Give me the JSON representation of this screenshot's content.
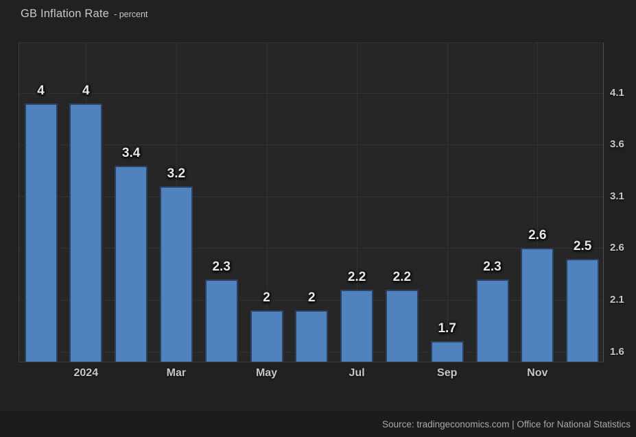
{
  "header": {
    "title": "GB Inflation Rate",
    "subtitle": "- percent"
  },
  "footer": {
    "source": "Source: tradingeconomics.com | Office for National Statistics"
  },
  "chart_data": {
    "type": "bar",
    "title": "GB Inflation Rate",
    "subtitle": "- percent",
    "ylabel": "percent",
    "values": [
      4,
      4,
      3.4,
      3.2,
      2.3,
      2,
      2,
      2.2,
      2.2,
      1.7,
      2.3,
      2.6,
      2.5
    ],
    "bar_labels": [
      "4",
      "4",
      "3.4",
      "3.2",
      "2.3",
      "2",
      "2",
      "2.2",
      "2.2",
      "1.7",
      "2.3",
      "2.6",
      "2.5"
    ],
    "x_ticks": [
      {
        "bar_index": 1,
        "label": "2024"
      },
      {
        "bar_index": 3,
        "label": "Mar"
      },
      {
        "bar_index": 5,
        "label": "May"
      },
      {
        "bar_index": 7,
        "label": "Jul"
      },
      {
        "bar_index": 9,
        "label": "Sep"
      },
      {
        "bar_index": 11,
        "label": "Nov"
      }
    ],
    "y_ticks": [
      4.1,
      3.6,
      3.1,
      2.6,
      2.1,
      1.6
    ],
    "ylim": [
      1.504,
      4.583
    ],
    "grid": "dotted",
    "legend": "none",
    "colors": {
      "bg": "#212121",
      "plot_bg": "#262626",
      "footer_bg": "#1c1c1c",
      "bar_fill": "#5082be",
      "bar_border": "#2e4061",
      "grid": "#3e3e3e",
      "axis": "#525252",
      "tick_text": "#c8c8c8",
      "value_text": "#e8e8e8",
      "title_text": "#c9c9c9",
      "source_text": "#a8a8a8"
    }
  }
}
